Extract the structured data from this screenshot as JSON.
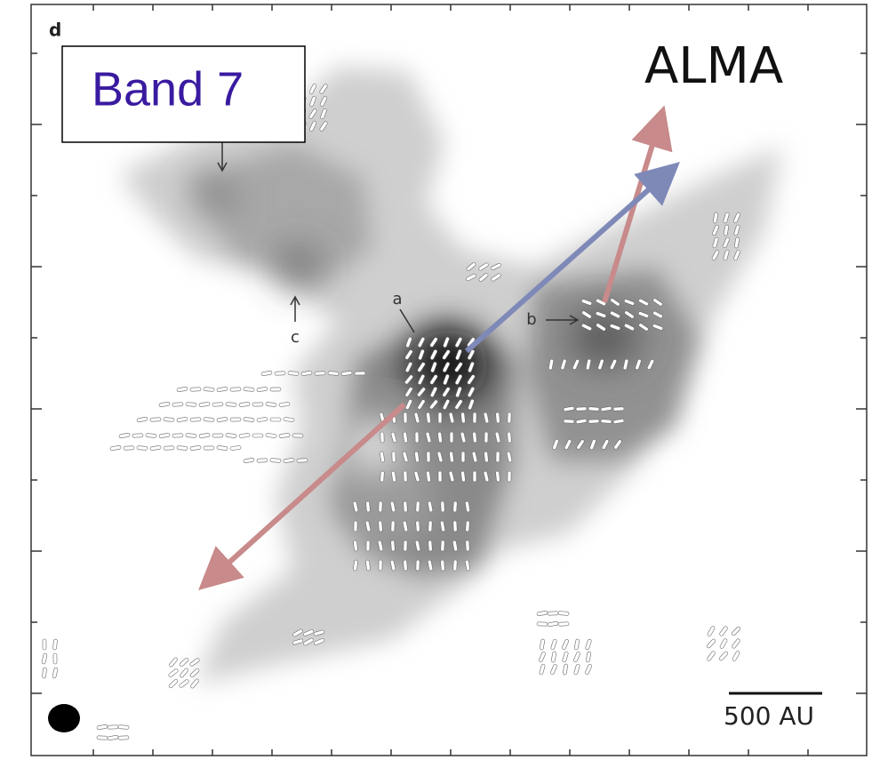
{
  "panel_label": "d",
  "band_label": "Band 7",
  "telescope": "ALMA",
  "markers": [
    "a",
    "b",
    "c"
  ],
  "scale_bar": "500 AU"
}
